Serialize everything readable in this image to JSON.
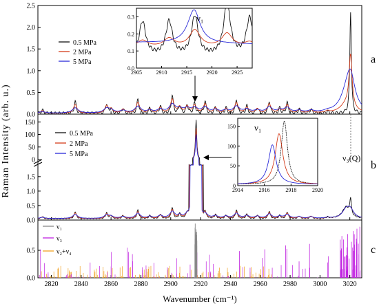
{
  "figure": {
    "xlabel": "Wavenumber (cm⁻¹)",
    "ylabel": "Raman  Intensity  (arb. u.)",
    "x_ticks": [
      "2820",
      "2840",
      "2860",
      "2880",
      "2900",
      "2920",
      "2940",
      "2960",
      "2980",
      "3000",
      "3020"
    ]
  },
  "chart_data": [
    {
      "id": "a",
      "type": "line",
      "panel_letter": "a",
      "xlim": [
        2811,
        3028
      ],
      "ylim": [
        0,
        2.5
      ],
      "y_ticks": [
        "0.0",
        "0.5",
        "1.0",
        "1.5",
        "2.0",
        "2.5"
      ],
      "legend": [
        "0.5 MPa",
        "2 MPa",
        "5 MPa"
      ],
      "colors": [
        "#111111",
        "#d43b1a",
        "#2a2ad8"
      ],
      "peaks_x": [
        2814,
        2836,
        2857,
        2860,
        2868,
        2878,
        2886,
        2893,
        2901,
        2906,
        2911,
        2916,
        2923,
        2930,
        2937,
        2944,
        2951,
        2958,
        2966,
        2973,
        2978,
        2986,
        2994,
        3005
      ],
      "peaks_y": [
        0.08,
        0.27,
        0.22,
        0.12,
        0.12,
        0.33,
        0.12,
        0.17,
        0.42,
        0.18,
        0.2,
        0.24,
        0.28,
        0.15,
        0.13,
        0.32,
        0.17,
        0.13,
        0.28,
        0.12,
        0.25,
        0.1,
        0.1,
        0.05
      ],
      "q_peak": {
        "x": 3020.5,
        "y": [
          2.35,
          1.2,
          0.7
        ]
      },
      "annotation_arrow_x": 2916.5,
      "inset": {
        "label": "ν₁",
        "xlim": [
          2905,
          2928
        ],
        "ylim": [
          0,
          0.35
        ],
        "x_ticks": [
          "2905",
          "2910",
          "2915",
          "2920",
          "2925"
        ],
        "y_ticks": [
          "0.0",
          "0.1",
          "0.2",
          "0.3"
        ]
      }
    },
    {
      "id": "b",
      "type": "line",
      "panel_letter": "b",
      "xlim": [
        2811,
        3028
      ],
      "ylim_lower": [
        0,
        1.9
      ],
      "ylim_upper": [
        0,
        170
      ],
      "y_ticks_lower": [
        "0.0",
        "0.5",
        "1.0",
        "1.5"
      ],
      "y_ticks_upper": [
        "0",
        "50",
        "100",
        "150"
      ],
      "legend": [
        "0.5 MPa",
        "2 MPa",
        "5 MPa"
      ],
      "colors": [
        "#111111",
        "#d43b1a",
        "#2a2ad8"
      ],
      "main_peak": {
        "x": 2917,
        "y": [
          160,
          125,
          100
        ]
      },
      "q_label": "ν₃(Q)",
      "inset": {
        "label": "ν₁",
        "xlim": [
          2914,
          2920
        ],
        "ylim": [
          0,
          170
        ],
        "x_ticks": [
          "2914",
          "2916",
          "2918",
          "2920"
        ],
        "y_ticks": [
          "0",
          "50",
          "100",
          "150"
        ],
        "peaks_x": [
          2917.5,
          2917.1,
          2916.6
        ],
        "peaks_y": [
          160,
          128,
          100
        ]
      }
    },
    {
      "id": "c",
      "type": "bar",
      "panel_letter": "c",
      "xlim": [
        2811,
        3028
      ],
      "ylim": [
        0,
        1.05
      ],
      "y_ticks": [
        "0.0",
        "0.5"
      ],
      "legend": [
        "ν₁",
        "ν₃",
        "ν₂+ν₄"
      ],
      "colors": [
        "#888888",
        "#c020e0",
        "#f0a020"
      ]
    }
  ]
}
